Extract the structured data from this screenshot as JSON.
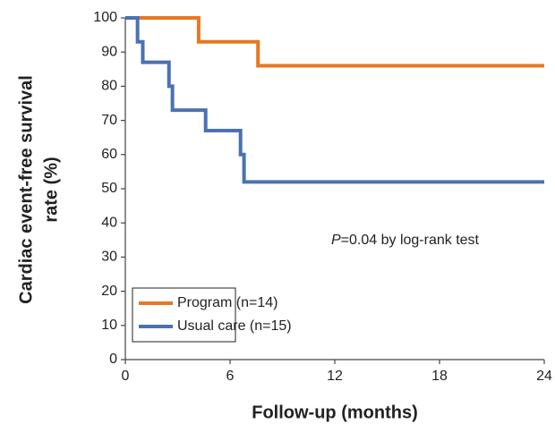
{
  "chart_data": {
    "type": "line",
    "step": "post",
    "xlabel": "Follow-up (months)",
    "ylabel": [
      "Cardiac event-free survival",
      "rate (%)"
    ],
    "annotation": {
      "italic": "P",
      "text": "=0.04 by log-rank test"
    },
    "x": [
      0,
      0.7,
      1,
      2.5,
      2.7,
      4.2,
      4.6,
      6.6,
      6.8,
      7.6,
      24
    ],
    "series": [
      {
        "name": "Program (n=14)",
        "color": "#e87722",
        "values": [
          100,
          100,
          100,
          100,
          100,
          93,
          93,
          93,
          93,
          86,
          86
        ]
      },
      {
        "name": "Usual care (n=15)",
        "color": "#4a72b0",
        "values": [
          100,
          93,
          87,
          80,
          73,
          73,
          67,
          60,
          52,
          52,
          52
        ]
      }
    ],
    "xlim": [
      0,
      24
    ],
    "xticks": [
      0,
      6,
      12,
      18,
      24
    ],
    "ylim": [
      0,
      100
    ],
    "yticks": [
      0,
      10,
      20,
      30,
      40,
      50,
      60,
      70,
      80,
      90,
      100
    ],
    "legend": "lower left"
  }
}
